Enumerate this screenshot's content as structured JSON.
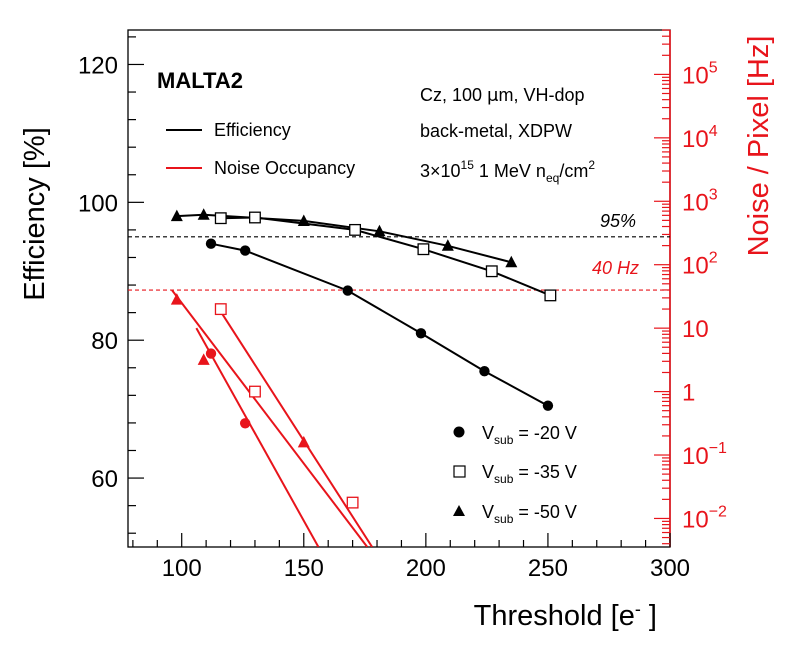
{
  "chart_data": {
    "type": "line",
    "title": "MALTA2",
    "xlabel": "Threshold [e⁻]",
    "ylabel": "Efficiency [%]",
    "y2label": "Noise / Pixel [Hz]",
    "xlim": [
      78,
      300
    ],
    "ylim": [
      50,
      125
    ],
    "y2log_lim_exp": [
      -2.45,
      5.7
    ],
    "x_ticks": [
      "100",
      "150",
      "200",
      "250",
      "300"
    ],
    "x_tick_values": [
      100,
      150,
      200,
      250,
      300
    ],
    "y_ticks": [
      "60",
      "80",
      "100",
      "120"
    ],
    "y_tick_values": [
      60,
      80,
      100,
      120
    ],
    "y2_ticks": [
      {
        "base": "10",
        "exp": "−2",
        "value_exp": -2
      },
      {
        "base": "10",
        "exp": "−1",
        "value_exp": -1
      },
      {
        "base": "1",
        "exp": "",
        "value_exp": 0
      },
      {
        "base": "10",
        "exp": "",
        "value_exp": 1
      },
      {
        "base": "10",
        "exp": "2",
        "value_exp": 2
      },
      {
        "base": "10",
        "exp": "3",
        "value_exp": 3
      },
      {
        "base": "10",
        "exp": "4",
        "value_exp": 4
      },
      {
        "base": "10",
        "exp": "5",
        "value_exp": 5
      }
    ],
    "info_lines": {
      "line1_a": "Cz, 100 ",
      "line1_mu": "μ",
      "line1_b": "m, VH-dop",
      "line2": "back-metal, XDPW",
      "line3_a": "3×10",
      "line3_sup": "15",
      "line3_b": " 1 MeV n",
      "line3_sub": "eq",
      "line3_c": "/cm",
      "line3_sup2": "2"
    },
    "reference_lines": [
      {
        "label": "95%",
        "axis": "left",
        "value": 95,
        "color": "#000000"
      },
      {
        "label": "40 Hz",
        "axis": "right",
        "value_log10": 1.6,
        "color": "#e8141b"
      }
    ],
    "line_legend": [
      {
        "label": "Efficiency",
        "color": "#000000"
      },
      {
        "label": "Noise Occupancy",
        "color": "#e8141b"
      }
    ],
    "series": [
      {
        "name": "V_sub = -20 V",
        "label_main": "V",
        "label_sub": "sub",
        "label_rest": " = -20 V",
        "marker": "circle",
        "efficiency": [
          [
            112,
            94.0
          ],
          [
            126,
            93.0
          ],
          [
            168,
            87.2
          ],
          [
            198,
            81.0
          ],
          [
            224,
            75.5
          ],
          [
            250,
            70.5
          ]
        ],
        "noise_log10": [
          [
            112,
            0.6
          ],
          [
            126,
            -0.5
          ]
        ],
        "noise_fit_log10": [
          [
            106,
            1.0
          ],
          [
            156,
            -2.45
          ]
        ]
      },
      {
        "name": "V_sub = -35 V",
        "label_main": "V",
        "label_sub": "sub",
        "label_rest": " = -35 V",
        "marker": "square",
        "efficiency": [
          [
            116,
            97.7
          ],
          [
            130,
            97.8
          ],
          [
            171,
            96.0
          ],
          [
            199,
            93.2
          ],
          [
            227,
            90.0
          ],
          [
            251,
            86.5
          ]
        ],
        "noise_log10": [
          [
            116,
            1.3
          ],
          [
            130,
            0.0
          ],
          [
            170,
            -1.75
          ]
        ],
        "noise_fit_log10": [
          [
            114,
            1.38
          ],
          [
            178,
            -2.45
          ]
        ]
      },
      {
        "name": "V_sub = -50 V",
        "label_main": "V",
        "label_sub": "sub",
        "label_rest": " = -50 V",
        "marker": "triangle",
        "efficiency": [
          [
            98,
            98.0
          ],
          [
            109,
            98.2
          ],
          [
            150,
            97.3
          ],
          [
            181,
            95.8
          ],
          [
            209,
            93.7
          ],
          [
            235,
            91.3
          ]
        ],
        "noise_log10": [
          [
            98,
            1.45
          ],
          [
            109,
            0.5
          ],
          [
            150,
            -0.8
          ]
        ],
        "noise_fit_log10": [
          [
            96,
            1.6
          ],
          [
            176,
            -2.45
          ]
        ]
      }
    ],
    "colors": {
      "efficiency": "#000000",
      "noise": "#e8141b"
    }
  }
}
